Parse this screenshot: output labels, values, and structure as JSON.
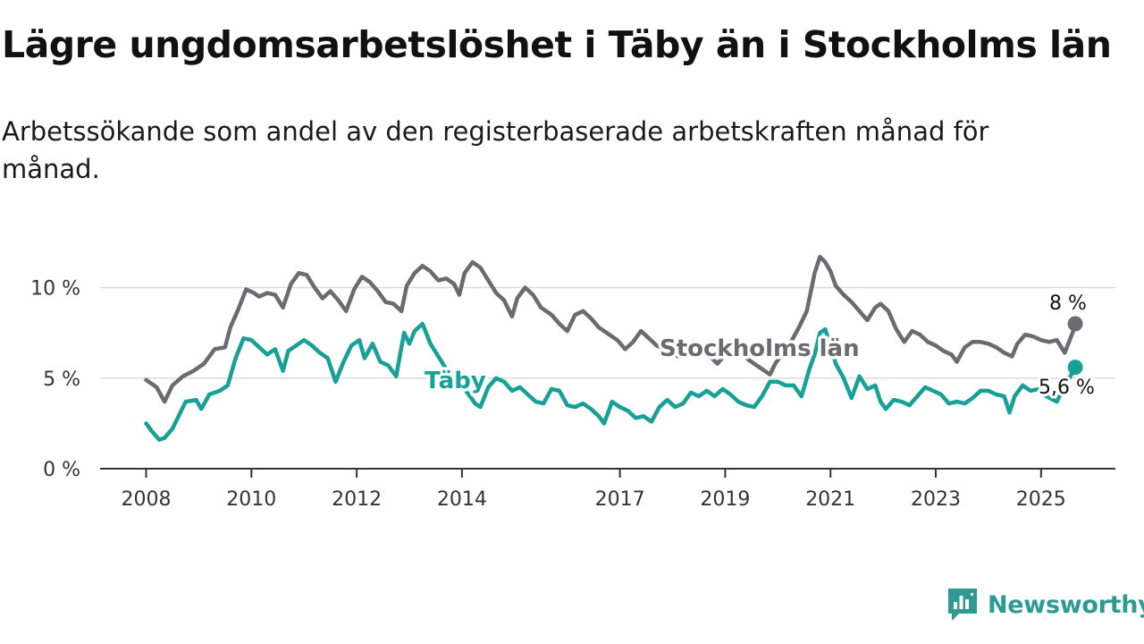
{
  "title": "Lägre ungdomsarbetslöshet i Täby än i Stockholms län",
  "subtitle": "Arbetssökande som andel av den registerbaserade arbetskraften månad för månad.",
  "brand": {
    "name": "Newsworthy",
    "icon": "newsworthy-logo-icon"
  },
  "colors": {
    "stockholm": "#6b6a70",
    "taby": "#16a096",
    "grid": "#dcdcdc",
    "axis": "#333333"
  },
  "chart_data": {
    "type": "line",
    "title": "Lägre ungdomsarbetslöshet i Täby än i Stockholms län",
    "ylim": [
      0,
      10
    ],
    "xlim": [
      2008.0,
      2025.7
    ],
    "grid": true,
    "y_ticks": [
      {
        "value": 0,
        "label": "0 %"
      },
      {
        "value": 5,
        "label": "5 %"
      },
      {
        "value": 10,
        "label": "10 %"
      }
    ],
    "x_ticks": [
      {
        "value": 2008,
        "label": "2008"
      },
      {
        "value": 2010,
        "label": "2010"
      },
      {
        "value": 2012,
        "label": "2012"
      },
      {
        "value": 2014,
        "label": "2014"
      },
      {
        "value": 2017,
        "label": "2017"
      },
      {
        "value": 2019,
        "label": "2019"
      },
      {
        "value": 2021,
        "label": "2021"
      },
      {
        "value": 2023,
        "label": "2023"
      },
      {
        "value": 2025,
        "label": "2025"
      }
    ],
    "series": [
      {
        "key": "stockholm",
        "name": "Stockholms län",
        "end_label": "8 %",
        "points": [
          [
            2008.0,
            4.9
          ],
          [
            2008.2,
            4.5
          ],
          [
            2008.35,
            3.7
          ],
          [
            2008.5,
            4.6
          ],
          [
            2008.7,
            5.1
          ],
          [
            2008.9,
            5.4
          ],
          [
            2009.1,
            5.8
          ],
          [
            2009.3,
            6.6
          ],
          [
            2009.5,
            6.7
          ],
          [
            2009.6,
            7.8
          ],
          [
            2009.75,
            8.8
          ],
          [
            2009.9,
            9.9
          ],
          [
            2010.05,
            9.7
          ],
          [
            2010.15,
            9.5
          ],
          [
            2010.3,
            9.7
          ],
          [
            2010.45,
            9.6
          ],
          [
            2010.6,
            8.9
          ],
          [
            2010.75,
            10.2
          ],
          [
            2010.9,
            10.8
          ],
          [
            2011.05,
            10.7
          ],
          [
            2011.2,
            10.0
          ],
          [
            2011.35,
            9.4
          ],
          [
            2011.5,
            9.8
          ],
          [
            2011.65,
            9.3
          ],
          [
            2011.8,
            8.7
          ],
          [
            2011.95,
            9.9
          ],
          [
            2012.1,
            10.6
          ],
          [
            2012.25,
            10.3
          ],
          [
            2012.4,
            9.8
          ],
          [
            2012.55,
            9.2
          ],
          [
            2012.7,
            9.1
          ],
          [
            2012.85,
            8.7
          ],
          [
            2012.95,
            10.1
          ],
          [
            2013.1,
            10.8
          ],
          [
            2013.25,
            11.2
          ],
          [
            2013.4,
            10.9
          ],
          [
            2013.55,
            10.4
          ],
          [
            2013.7,
            10.5
          ],
          [
            2013.85,
            10.2
          ],
          [
            2013.95,
            9.6
          ],
          [
            2014.05,
            10.8
          ],
          [
            2014.2,
            11.4
          ],
          [
            2014.35,
            11.1
          ],
          [
            2014.5,
            10.4
          ],
          [
            2014.65,
            9.7
          ],
          [
            2014.8,
            9.3
          ],
          [
            2014.95,
            8.4
          ],
          [
            2015.05,
            9.4
          ],
          [
            2015.2,
            10.0
          ],
          [
            2015.35,
            9.6
          ],
          [
            2015.5,
            8.9
          ],
          [
            2015.7,
            8.5
          ],
          [
            2015.85,
            8.0
          ],
          [
            2016.0,
            7.6
          ],
          [
            2016.15,
            8.5
          ],
          [
            2016.3,
            8.7
          ],
          [
            2016.45,
            8.3
          ],
          [
            2016.6,
            7.8
          ],
          [
            2016.8,
            7.4
          ],
          [
            2016.95,
            7.1
          ],
          [
            2017.1,
            6.6
          ],
          [
            2017.25,
            7.0
          ],
          [
            2017.4,
            7.6
          ],
          [
            2017.55,
            7.2
          ],
          [
            2017.7,
            6.8
          ],
          [
            2017.85,
            6.6
          ],
          [
            2018.0,
            6.4
          ],
          [
            2018.1,
            6.2
          ],
          [
            2018.25,
            6.8
          ],
          [
            2018.4,
            7.0
          ],
          [
            2018.5,
            6.8
          ],
          [
            2018.6,
            6.4
          ],
          [
            2018.75,
            6.1
          ],
          [
            2018.85,
            5.8
          ],
          [
            2019.0,
            6.3
          ],
          [
            2019.15,
            6.7
          ],
          [
            2019.3,
            6.4
          ],
          [
            2019.45,
            6.0
          ],
          [
            2019.6,
            5.7
          ],
          [
            2019.75,
            5.4
          ],
          [
            2019.85,
            5.2
          ],
          [
            2019.95,
            5.8
          ],
          [
            2020.1,
            6.4
          ],
          [
            2020.25,
            7.0
          ],
          [
            2020.4,
            7.8
          ],
          [
            2020.55,
            8.7
          ],
          [
            2020.7,
            10.8
          ],
          [
            2020.8,
            11.7
          ],
          [
            2020.9,
            11.4
          ],
          [
            2021.0,
            10.9
          ],
          [
            2021.1,
            10.1
          ],
          [
            2021.25,
            9.6
          ],
          [
            2021.4,
            9.2
          ],
          [
            2021.55,
            8.7
          ],
          [
            2021.7,
            8.2
          ],
          [
            2021.85,
            8.9
          ],
          [
            2021.95,
            9.1
          ],
          [
            2022.1,
            8.7
          ],
          [
            2022.25,
            7.7
          ],
          [
            2022.4,
            7.0
          ],
          [
            2022.55,
            7.6
          ],
          [
            2022.7,
            7.4
          ],
          [
            2022.85,
            7.0
          ],
          [
            2023.0,
            6.8
          ],
          [
            2023.15,
            6.5
          ],
          [
            2023.3,
            6.3
          ],
          [
            2023.4,
            5.9
          ],
          [
            2023.55,
            6.7
          ],
          [
            2023.7,
            7.0
          ],
          [
            2023.85,
            7.0
          ],
          [
            2024.0,
            6.9
          ],
          [
            2024.15,
            6.7
          ],
          [
            2024.3,
            6.4
          ],
          [
            2024.45,
            6.2
          ],
          [
            2024.55,
            6.9
          ],
          [
            2024.7,
            7.4
          ],
          [
            2024.85,
            7.3
          ],
          [
            2025.0,
            7.1
          ],
          [
            2025.15,
            7.0
          ],
          [
            2025.3,
            7.1
          ],
          [
            2025.45,
            6.4
          ],
          [
            2025.6,
            7.5
          ],
          [
            2025.65,
            8.0
          ]
        ]
      },
      {
        "key": "taby",
        "name": "Täby",
        "end_label": "5,6 %",
        "points": [
          [
            2008.0,
            2.5
          ],
          [
            2008.1,
            2.1
          ],
          [
            2008.25,
            1.6
          ],
          [
            2008.35,
            1.7
          ],
          [
            2008.5,
            2.2
          ],
          [
            2008.6,
            2.8
          ],
          [
            2008.75,
            3.7
          ],
          [
            2008.95,
            3.8
          ],
          [
            2009.05,
            3.3
          ],
          [
            2009.2,
            4.1
          ],
          [
            2009.4,
            4.3
          ],
          [
            2009.55,
            4.6
          ],
          [
            2009.7,
            6.1
          ],
          [
            2009.85,
            7.2
          ],
          [
            2010.0,
            7.1
          ],
          [
            2010.15,
            6.7
          ],
          [
            2010.3,
            6.3
          ],
          [
            2010.45,
            6.6
          ],
          [
            2010.6,
            5.4
          ],
          [
            2010.7,
            6.5
          ],
          [
            2010.85,
            6.8
          ],
          [
            2011.0,
            7.1
          ],
          [
            2011.15,
            6.8
          ],
          [
            2011.3,
            6.4
          ],
          [
            2011.45,
            6.1
          ],
          [
            2011.6,
            4.8
          ],
          [
            2011.75,
            5.9
          ],
          [
            2011.9,
            6.8
          ],
          [
            2012.05,
            7.1
          ],
          [
            2012.15,
            6.1
          ],
          [
            2012.3,
            6.9
          ],
          [
            2012.45,
            5.9
          ],
          [
            2012.6,
            5.7
          ],
          [
            2012.75,
            5.1
          ],
          [
            2012.9,
            7.5
          ],
          [
            2013.0,
            6.9
          ],
          [
            2013.1,
            7.6
          ],
          [
            2013.25,
            8.0
          ],
          [
            2013.4,
            6.9
          ],
          [
            2013.55,
            6.2
          ],
          [
            2013.7,
            5.5
          ],
          [
            2013.85,
            5.2
          ],
          [
            2014.0,
            4.6
          ],
          [
            2014.1,
            4.2
          ],
          [
            2014.25,
            3.6
          ],
          [
            2014.35,
            3.4
          ],
          [
            2014.5,
            4.5
          ],
          [
            2014.65,
            5.0
          ],
          [
            2014.8,
            4.8
          ],
          [
            2014.95,
            4.3
          ],
          [
            2015.1,
            4.5
          ],
          [
            2015.25,
            4.1
          ],
          [
            2015.4,
            3.7
          ],
          [
            2015.55,
            3.6
          ],
          [
            2015.7,
            4.4
          ],
          [
            2015.85,
            4.3
          ],
          [
            2016.0,
            3.5
          ],
          [
            2016.15,
            3.4
          ],
          [
            2016.3,
            3.6
          ],
          [
            2016.45,
            3.3
          ],
          [
            2016.6,
            2.9
          ],
          [
            2016.7,
            2.5
          ],
          [
            2016.85,
            3.7
          ],
          [
            2017.0,
            3.4
          ],
          [
            2017.15,
            3.2
          ],
          [
            2017.3,
            2.8
          ],
          [
            2017.45,
            2.9
          ],
          [
            2017.6,
            2.6
          ],
          [
            2017.75,
            3.4
          ],
          [
            2017.9,
            3.8
          ],
          [
            2018.05,
            3.4
          ],
          [
            2018.2,
            3.6
          ],
          [
            2018.35,
            4.2
          ],
          [
            2018.5,
            4.0
          ],
          [
            2018.65,
            4.3
          ],
          [
            2018.8,
            4.0
          ],
          [
            2018.95,
            4.4
          ],
          [
            2019.1,
            4.1
          ],
          [
            2019.25,
            3.7
          ],
          [
            2019.4,
            3.5
          ],
          [
            2019.55,
            3.4
          ],
          [
            2019.7,
            4.0
          ],
          [
            2019.85,
            4.8
          ],
          [
            2020.0,
            4.8
          ],
          [
            2020.15,
            4.6
          ],
          [
            2020.3,
            4.6
          ],
          [
            2020.45,
            4.0
          ],
          [
            2020.6,
            5.5
          ],
          [
            2020.7,
            6.3
          ],
          [
            2020.8,
            7.5
          ],
          [
            2020.9,
            7.7
          ],
          [
            2021.0,
            6.8
          ],
          [
            2021.1,
            5.8
          ],
          [
            2021.25,
            5.0
          ],
          [
            2021.4,
            3.9
          ],
          [
            2021.55,
            5.1
          ],
          [
            2021.7,
            4.4
          ],
          [
            2021.85,
            4.6
          ],
          [
            2021.95,
            3.7
          ],
          [
            2022.05,
            3.3
          ],
          [
            2022.2,
            3.8
          ],
          [
            2022.35,
            3.7
          ],
          [
            2022.5,
            3.5
          ],
          [
            2022.65,
            4.0
          ],
          [
            2022.8,
            4.5
          ],
          [
            2022.95,
            4.3
          ],
          [
            2023.1,
            4.1
          ],
          [
            2023.25,
            3.6
          ],
          [
            2023.4,
            3.7
          ],
          [
            2023.55,
            3.6
          ],
          [
            2023.7,
            3.9
          ],
          [
            2023.85,
            4.3
          ],
          [
            2024.0,
            4.3
          ],
          [
            2024.15,
            4.1
          ],
          [
            2024.3,
            4.0
          ],
          [
            2024.4,
            3.1
          ],
          [
            2024.5,
            4.0
          ],
          [
            2024.65,
            4.6
          ],
          [
            2024.8,
            4.3
          ],
          [
            2024.95,
            4.4
          ],
          [
            2025.1,
            4.0
          ],
          [
            2025.3,
            3.7
          ],
          [
            2025.45,
            4.6
          ],
          [
            2025.6,
            5.3
          ],
          [
            2025.65,
            5.6
          ]
        ]
      }
    ]
  }
}
